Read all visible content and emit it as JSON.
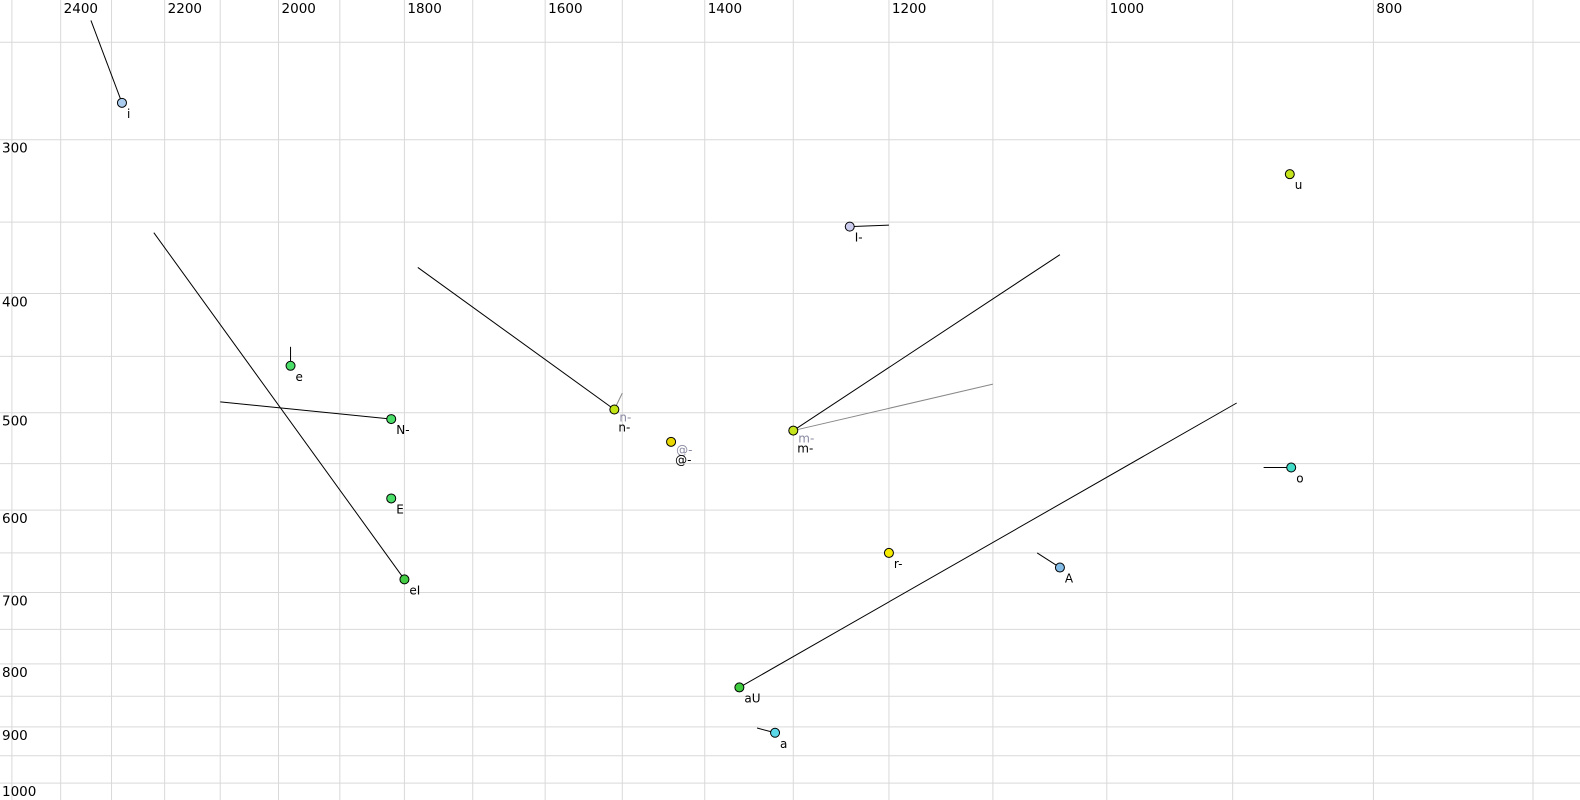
{
  "chart_data": {
    "type": "scatter",
    "title": "",
    "description": "Vowel formant chart: F2 (Hz) on horizontal axis decreasing rightward, F1 (Hz) on vertical axis increasing downward, both logarithmic",
    "x_axis": {
      "unit": "Hz",
      "scale": "log",
      "left_value": 2525,
      "right_value": 673,
      "ticks": [
        "2400",
        "2200",
        "2000",
        "1800",
        "1600",
        "1400",
        "1200",
        "1000",
        "800"
      ],
      "tick_values": [
        2400,
        2200,
        2000,
        1800,
        1600,
        1400,
        1200,
        1000,
        800
      ],
      "grid_max": 2500,
      "grid_min": 700,
      "grid_step": 100
    },
    "y_axis": {
      "unit": "Hz",
      "scale": "log",
      "top_value": 231,
      "bottom_value": 1032,
      "ticks": [
        "300",
        "400",
        "500",
        "600",
        "700",
        "800",
        "900",
        "1000"
      ],
      "tick_values": [
        300,
        400,
        500,
        600,
        700,
        800,
        900,
        1000
      ],
      "grid_max": 1000,
      "grid_min": 250,
      "grid_step": 50
    },
    "grid_color": "#d9d9d9",
    "tick_label_color": "#000000",
    "point_label_color": "#000000",
    "gray_label_color": "#8a8aa2",
    "point_stroke_color": "#000000",
    "points": [
      {
        "label": "i",
        "f2": 2280,
        "f1": 280,
        "fill": "#aaccee"
      },
      {
        "label": "u",
        "f2": 858,
        "f1": 320,
        "fill": "#c6e41c"
      },
      {
        "label": "I-",
        "f2": 1240,
        "f1": 353,
        "fill": "#ccccee"
      },
      {
        "label": "e",
        "f2": 1980,
        "f1": 458,
        "fill": "#4ade68"
      },
      {
        "label": "N-",
        "f2": 1820,
        "f1": 506,
        "fill": "#4ade68"
      },
      {
        "label": "n-",
        "f2": 1510,
        "f1": 497,
        "fill": "#c0e414",
        "gray_label": "n-"
      },
      {
        "label": "@-",
        "f2": 1440,
        "f1": 528,
        "fill": "#e8d800",
        "gray_label": "@-"
      },
      {
        "label": "m-",
        "f2": 1300,
        "f1": 517,
        "fill": "#c6e41c",
        "gray_label": "m-"
      },
      {
        "label": "E",
        "f2": 1820,
        "f1": 587,
        "fill": "#4ade68"
      },
      {
        "label": "o",
        "f2": 857,
        "f1": 554,
        "fill": "#40dcc8"
      },
      {
        "label": "r-",
        "f2": 1200,
        "f1": 650,
        "fill": "#f6ec00"
      },
      {
        "label": "A",
        "f2": 1040,
        "f1": 668,
        "fill": "#84bce8"
      },
      {
        "label": "eI",
        "f2": 1800,
        "f1": 683,
        "fill": "#44cc44"
      },
      {
        "label": "aU",
        "f2": 1360,
        "f1": 836,
        "fill": "#3ecc3e"
      },
      {
        "label": "a",
        "f2": 1320,
        "f1": 910,
        "fill": "#5ad8e8"
      }
    ],
    "segments": [
      {
        "name": "trajectory-i",
        "from": [
          2340,
          240
        ],
        "to": [
          2280,
          280
        ],
        "color": "#000000"
      },
      {
        "name": "trajectory-eI",
        "from": [
          2220,
          357
        ],
        "to": [
          1800,
          683
        ],
        "color": "#000000"
      },
      {
        "name": "trajectory-n",
        "from": [
          1780,
          381
        ],
        "to": [
          1510,
          497
        ],
        "color": "#000000"
      },
      {
        "name": "trajectory-n-gray",
        "from": [
          1500,
          482
        ],
        "to": [
          1510,
          497
        ],
        "color": "#888888"
      },
      {
        "name": "trajectory-N",
        "from": [
          2100,
          490
        ],
        "to": [
          1820,
          506
        ],
        "color": "#000000"
      },
      {
        "name": "trajectory-e",
        "from": [
          1980,
          442
        ],
        "to": [
          1980,
          458
        ],
        "color": "#000000"
      },
      {
        "name": "trajectory-I",
        "from": [
          1240,
          353
        ],
        "to": [
          1200,
          352
        ],
        "color": "#000000"
      },
      {
        "name": "trajectory-m",
        "from": [
          1300,
          517
        ],
        "to": [
          1040,
          372
        ],
        "color": "#000000"
      },
      {
        "name": "trajectory-m-gray",
        "from": [
          1300,
          517
        ],
        "to": [
          1100,
          474
        ],
        "color": "#888888"
      },
      {
        "name": "trajectory-o",
        "from": [
          877,
          554
        ],
        "to": [
          857,
          554
        ],
        "color": "#000000"
      },
      {
        "name": "trajectory-A",
        "from": [
          1060,
          650
        ],
        "to": [
          1040,
          668
        ],
        "color": "#000000"
      },
      {
        "name": "trajectory-aU",
        "from": [
          1360,
          836
        ],
        "to": [
          897,
          491
        ],
        "color": "#000000"
      },
      {
        "name": "trajectory-a",
        "from": [
          1340,
          902
        ],
        "to": [
          1320,
          910
        ],
        "color": "#000000"
      },
      {
        "name": "trajectory-r",
        "from": [
          1200,
          645
        ],
        "to": [
          1200,
          650
        ],
        "color": "#000000"
      }
    ]
  }
}
